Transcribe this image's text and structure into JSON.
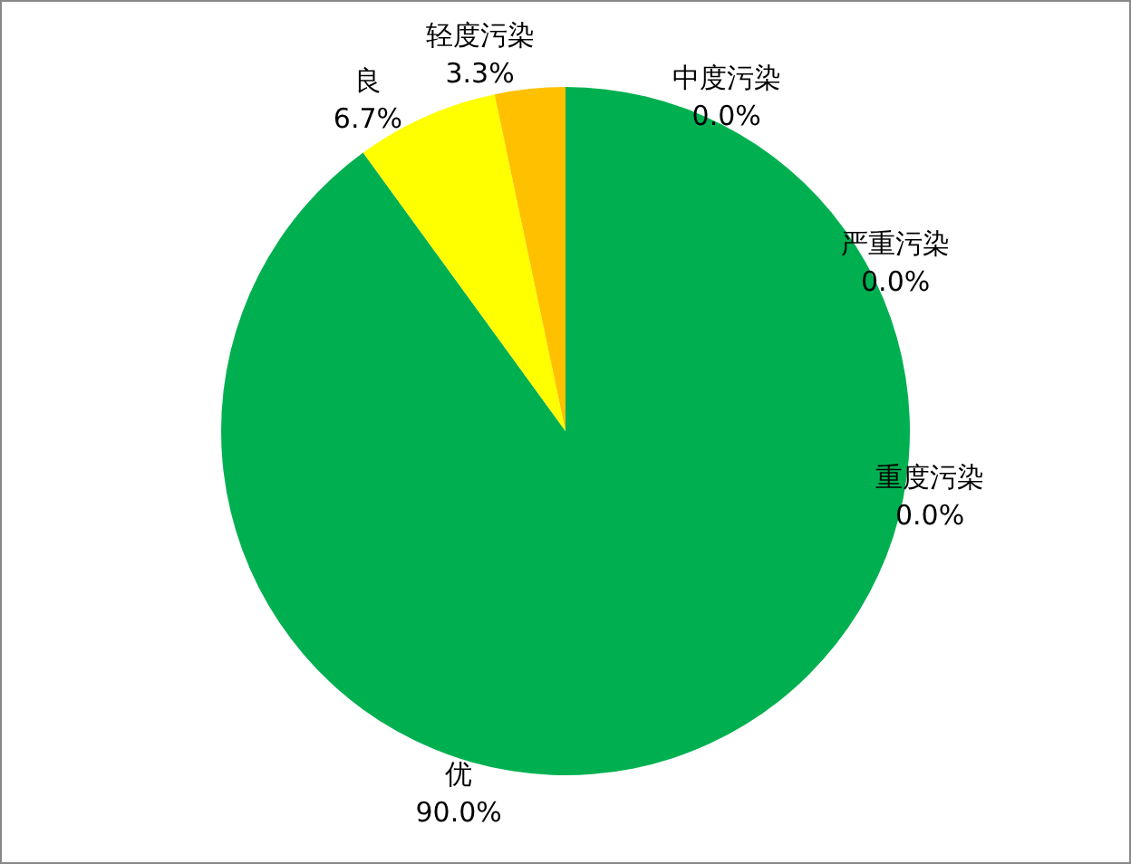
{
  "chart_data": {
    "type": "pie",
    "categories": [
      "优",
      "良",
      "轻度污染",
      "中度污染",
      "严重污染",
      "重度污染"
    ],
    "values": [
      90.0,
      6.7,
      3.3,
      0.0,
      0.0,
      0.0
    ],
    "colors": [
      "#00b050",
      "#ffff00",
      "#ffc000",
      "#ff0000",
      "#7e0023",
      "#99004c"
    ],
    "value_labels": [
      "90.0%",
      "6.7%",
      "3.3%",
      "0.0%",
      "0.0%",
      "0.0%"
    ]
  }
}
